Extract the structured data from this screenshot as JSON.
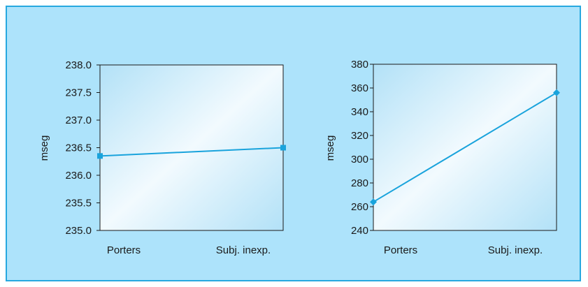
{
  "chart_data": [
    {
      "type": "line",
      "title": "",
      "xlabel": "",
      "ylabel": "mseg",
      "categories": [
        "Porters",
        "Subj. inexp."
      ],
      "series": [
        {
          "values": [
            236.35,
            236.5
          ]
        }
      ],
      "ylim": [
        235.0,
        238.0
      ],
      "yticks": [
        "235.0",
        "235.5",
        "236.0",
        "236.5",
        "237.0",
        "237.5",
        "238.0"
      ],
      "marker": "square",
      "grid": false
    },
    {
      "type": "line",
      "title": "",
      "xlabel": "",
      "ylabel": "mseg",
      "categories": [
        "Porters",
        "Subj. inexp."
      ],
      "series": [
        {
          "values": [
            264,
            356
          ]
        }
      ],
      "ylim": [
        240,
        380
      ],
      "yticks": [
        "240",
        "260",
        "280",
        "300",
        "320",
        "340",
        "360",
        "380"
      ],
      "marker": "diamond",
      "grid": false
    }
  ],
  "colors": {
    "background": "#ade3fb",
    "frame_border": "#27a8df",
    "line": "#19a3dc",
    "plot_light": "#f2fafe",
    "plot_dark": "#b2e1f7"
  }
}
